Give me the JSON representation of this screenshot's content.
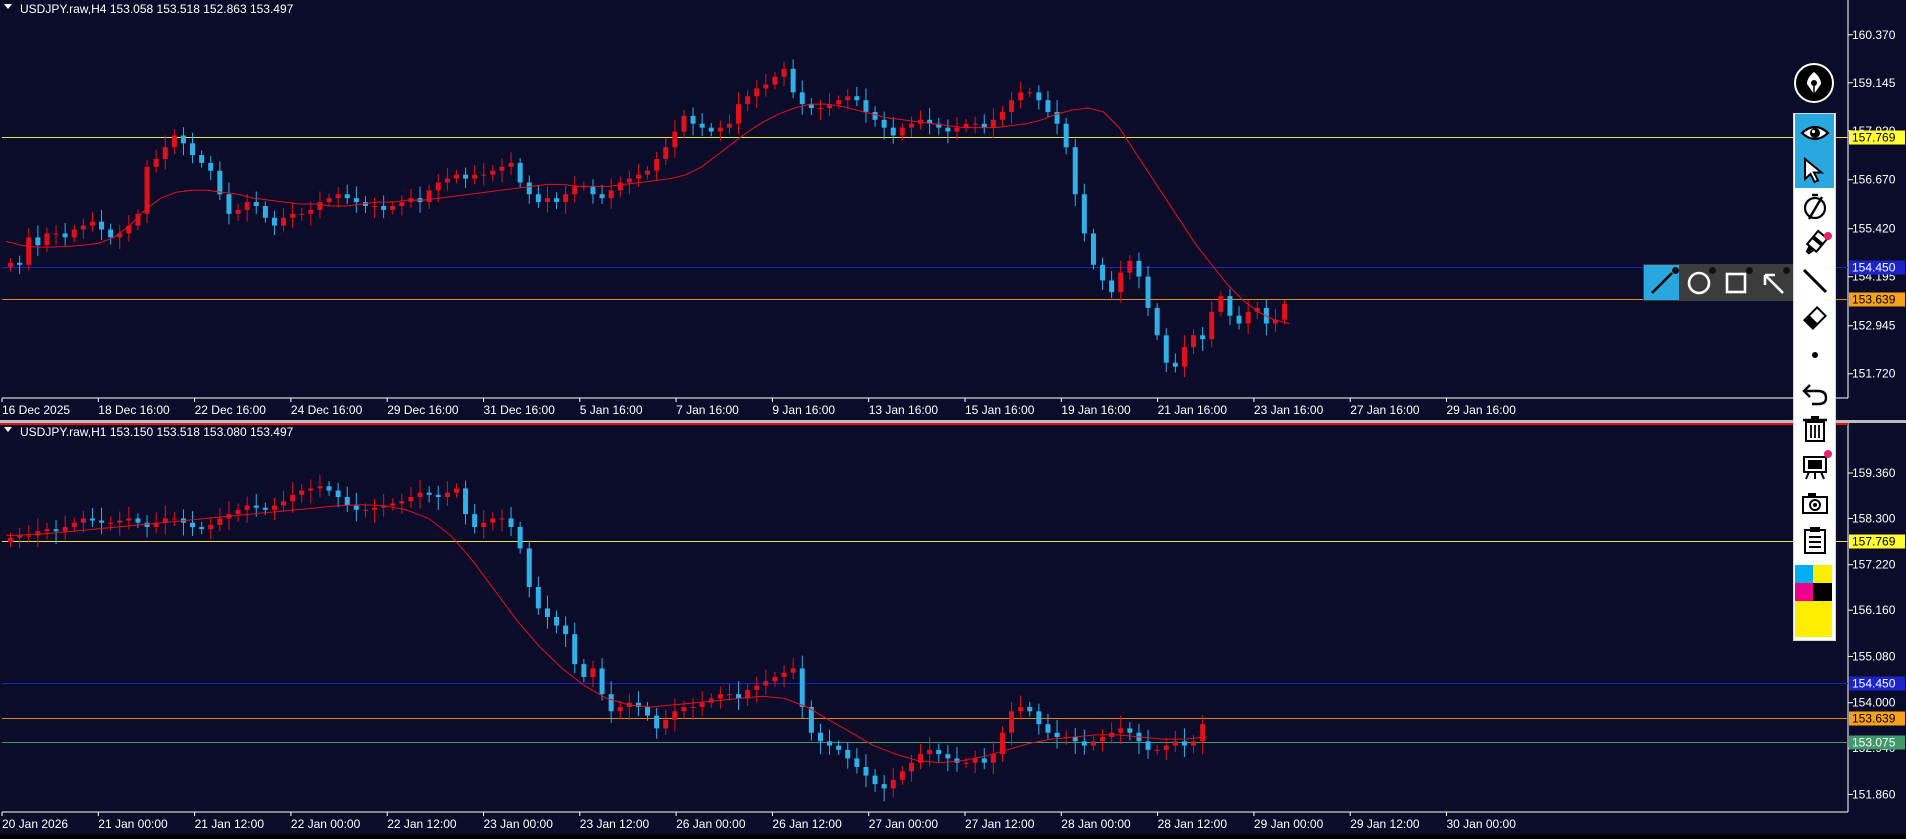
{
  "panes": [
    {
      "id": "h4",
      "header": "USDJPY.raw,H4  153.058 153.518 152.863 153.497",
      "price_labels": [
        "160.370",
        "159.145",
        "157.920",
        "156.670",
        "155.420",
        "154.195",
        "152.945",
        "151.720"
      ],
      "time_labels": [
        "16 Dec 2025",
        "18 Dec 16:00",
        "22 Dec 16:00",
        "24 Dec 16:00",
        "29 Dec 16:00",
        "31 Dec 16:00",
        "5 Jan 16:00",
        "7 Jan 16:00",
        "9 Jan 16:00",
        "13 Jan 16:00",
        "15 Jan 16:00",
        "19 Jan 16:00",
        "21 Jan 16:00",
        "23 Jan 16:00",
        "27 Jan 16:00",
        "29 Jan 16:00"
      ],
      "hlines": [
        {
          "label": "157.769",
          "color": "#e5e53a",
          "label_bg": "#ffff33",
          "label_fg": "#000000"
        },
        {
          "label": "154.450",
          "color": "#1a24c8",
          "label_bg": "#1a24c8",
          "label_fg": "#ffffff"
        },
        {
          "label": "153.639",
          "color": "#e08a16",
          "label_bg": "#f7a21a",
          "label_fg": "#000000"
        }
      ],
      "ylim": [
        151.1,
        160.9
      ],
      "closes": [
        154.55,
        154.5,
        155.2,
        155.0,
        155.3,
        155.3,
        155.2,
        155.4,
        155.5,
        155.6,
        155.4,
        155.2,
        155.3,
        155.5,
        155.8,
        157.0,
        157.2,
        157.5,
        157.8,
        157.6,
        157.3,
        157.1,
        156.9,
        156.3,
        155.8,
        155.9,
        156.1,
        156.0,
        155.7,
        155.5,
        155.7,
        155.8,
        155.8,
        155.9,
        156.1,
        156.2,
        156.3,
        156.2,
        156.1,
        156.0,
        156.0,
        155.9,
        156.0,
        156.1,
        156.2,
        156.1,
        156.4,
        156.6,
        156.7,
        156.8,
        156.7,
        156.8,
        156.8,
        156.9,
        157.0,
        157.1,
        156.6,
        156.3,
        156.1,
        156.2,
        156.1,
        156.3,
        156.5,
        156.5,
        156.3,
        156.2,
        156.4,
        156.6,
        156.7,
        156.8,
        156.9,
        157.2,
        157.5,
        157.9,
        158.3,
        158.1,
        158.0,
        157.9,
        158.0,
        158.1,
        158.6,
        158.8,
        159.0,
        159.1,
        159.3,
        159.5,
        158.9,
        158.6,
        158.5,
        158.5,
        158.6,
        158.7,
        158.8,
        158.7,
        158.4,
        158.2,
        158.0,
        157.8,
        158.0,
        158.1,
        158.2,
        158.1,
        158.0,
        157.9,
        158.0,
        158.1,
        158.1,
        158.0,
        158.2,
        158.4,
        158.7,
        158.9,
        158.9,
        158.7,
        158.4,
        158.1,
        157.5,
        156.3,
        155.3,
        154.5,
        154.1,
        153.8,
        154.3,
        154.6,
        154.2,
        153.4,
        152.7,
        152.0,
        151.9,
        152.4,
        152.7,
        152.6,
        153.3,
        153.7,
        153.2,
        153.0,
        153.3,
        153.4,
        153.0,
        153.1,
        153.5
      ],
      "ma": [
        155.1,
        155.0,
        154.95,
        154.95,
        154.97,
        155.0,
        155.05,
        155.2,
        155.5,
        155.9,
        156.2,
        156.35,
        156.4,
        156.4,
        156.35,
        156.3,
        156.2,
        156.15,
        156.1,
        156.05,
        156.05,
        156.0,
        156.0,
        156.05,
        156.1,
        156.1,
        156.15,
        156.15,
        156.2,
        156.25,
        156.3,
        156.35,
        156.4,
        156.45,
        156.5,
        156.55,
        156.55,
        156.5,
        156.5,
        156.5,
        156.55,
        156.6,
        156.65,
        156.7,
        156.8,
        157.0,
        157.3,
        157.6,
        157.9,
        158.15,
        158.35,
        158.5,
        158.6,
        158.6,
        158.55,
        158.45,
        158.35,
        158.25,
        158.2,
        158.15,
        158.1,
        158.05,
        158.0,
        158.0,
        158.0,
        158.05,
        158.1,
        158.2,
        158.35,
        158.45,
        158.5,
        158.4,
        158.0,
        157.4,
        156.8,
        156.2,
        155.6,
        155.0,
        154.5,
        154.0,
        153.6,
        153.3,
        153.1,
        153.0
      ]
    },
    {
      "id": "h1",
      "header": "USDJPY.raw,H1  153.150 153.518 153.080 153.497",
      "price_labels": [
        "159.360",
        "158.300",
        "157.220",
        "156.160",
        "155.080",
        "154.000",
        "152.940",
        "151.860"
      ],
      "time_labels": [
        "20 Jan 2026",
        "21 Jan 00:00",
        "21 Jan 12:00",
        "22 Jan 00:00",
        "22 Jan 12:00",
        "23 Jan 00:00",
        "23 Jan 12:00",
        "26 Jan 00:00",
        "26 Jan 12:00",
        "27 Jan 00:00",
        "27 Jan 12:00",
        "28 Jan 00:00",
        "28 Jan 12:00",
        "29 Jan 00:00",
        "29 Jan 12:00",
        "30 Jan 00:00"
      ],
      "hlines": [
        {
          "label": "157.769",
          "color": "#e5e53a",
          "label_bg": "#ffff33",
          "label_fg": "#000000"
        },
        {
          "label": "154.450",
          "color": "#1a24c8",
          "label_bg": "#1a24c8",
          "label_fg": "#ffffff"
        },
        {
          "label": "153.639",
          "color": "#e08a16",
          "label_bg": "#f7a21a",
          "label_fg": "#000000"
        },
        {
          "label": "153.075",
          "color": "#3f9a6a",
          "label_bg": "#3f9a6a",
          "label_fg": "#ffffff"
        }
      ],
      "ylim": [
        151.45,
        160.2
      ],
      "closes": [
        157.85,
        157.9,
        157.9,
        158.0,
        158.05,
        158.0,
        158.1,
        158.2,
        158.3,
        158.25,
        158.2,
        158.2,
        158.25,
        158.3,
        158.2,
        158.1,
        158.2,
        158.3,
        158.3,
        158.2,
        158.1,
        158.05,
        158.15,
        158.3,
        158.4,
        158.5,
        158.6,
        158.55,
        158.5,
        158.6,
        158.7,
        158.85,
        158.95,
        159.0,
        159.05,
        158.95,
        158.8,
        158.6,
        158.5,
        158.5,
        158.55,
        158.6,
        158.65,
        158.7,
        158.8,
        158.9,
        158.85,
        158.8,
        158.9,
        159.0,
        158.4,
        158.1,
        158.2,
        158.3,
        158.3,
        158.1,
        157.6,
        156.7,
        156.2,
        156.0,
        155.8,
        155.6,
        154.9,
        154.6,
        154.8,
        154.2,
        153.8,
        153.9,
        154.0,
        153.9,
        153.7,
        153.4,
        153.6,
        153.8,
        153.9,
        153.9,
        154.0,
        154.1,
        154.2,
        154.2,
        154.1,
        154.3,
        154.4,
        154.5,
        154.6,
        154.7,
        154.8,
        153.9,
        153.3,
        153.1,
        153.0,
        152.9,
        152.7,
        152.5,
        152.3,
        152.1,
        152.0,
        152.2,
        152.4,
        152.6,
        152.8,
        152.9,
        152.8,
        152.7,
        152.6,
        152.6,
        152.7,
        152.6,
        152.8,
        153.3,
        153.8,
        153.9,
        153.8,
        153.5,
        153.3,
        153.2,
        153.2,
        153.1,
        153.0,
        153.1,
        153.2,
        153.3,
        153.4,
        153.3,
        153.1,
        152.9,
        152.9,
        153.0,
        153.1,
        153.0,
        153.1,
        153.5
      ],
      "ma": [
        157.9,
        157.92,
        157.95,
        158.0,
        158.05,
        158.1,
        158.15,
        158.2,
        158.25,
        158.3,
        158.35,
        158.4,
        158.45,
        158.5,
        158.55,
        158.6,
        158.62,
        158.6,
        158.5,
        158.3,
        157.9,
        157.3,
        156.6,
        155.9,
        155.3,
        154.8,
        154.4,
        154.1,
        153.95,
        153.9,
        153.95,
        154.0,
        154.05,
        154.1,
        154.15,
        154.1,
        153.9,
        153.6,
        153.3,
        153.0,
        152.8,
        152.65,
        152.6,
        152.65,
        152.75,
        152.9,
        153.05,
        153.15,
        153.2,
        153.25,
        153.25,
        153.2,
        153.15,
        153.15,
        153.2
      ]
    }
  ],
  "toolbar": {
    "items": [
      "pen-logo",
      "eye",
      "cursor",
      "compass",
      "highlighter",
      "line",
      "eraser",
      "dot",
      "undo",
      "trash",
      "projector",
      "camera",
      "clipboard",
      "colors"
    ],
    "active": [
      "eye",
      "cursor"
    ]
  },
  "shapes_popup": {
    "items": [
      "line",
      "circle",
      "rectangle",
      "arrow"
    ],
    "active": "line"
  },
  "colors": {
    "background": "#0b0c2a",
    "bull": "#e3101c",
    "bear": "#2fb0e8",
    "ma": "#e3101c",
    "swatch_cyan": "#00aeef",
    "swatch_yellow": "#ffed00",
    "swatch_magenta": "#ec008c",
    "swatch_black": "#000000"
  }
}
